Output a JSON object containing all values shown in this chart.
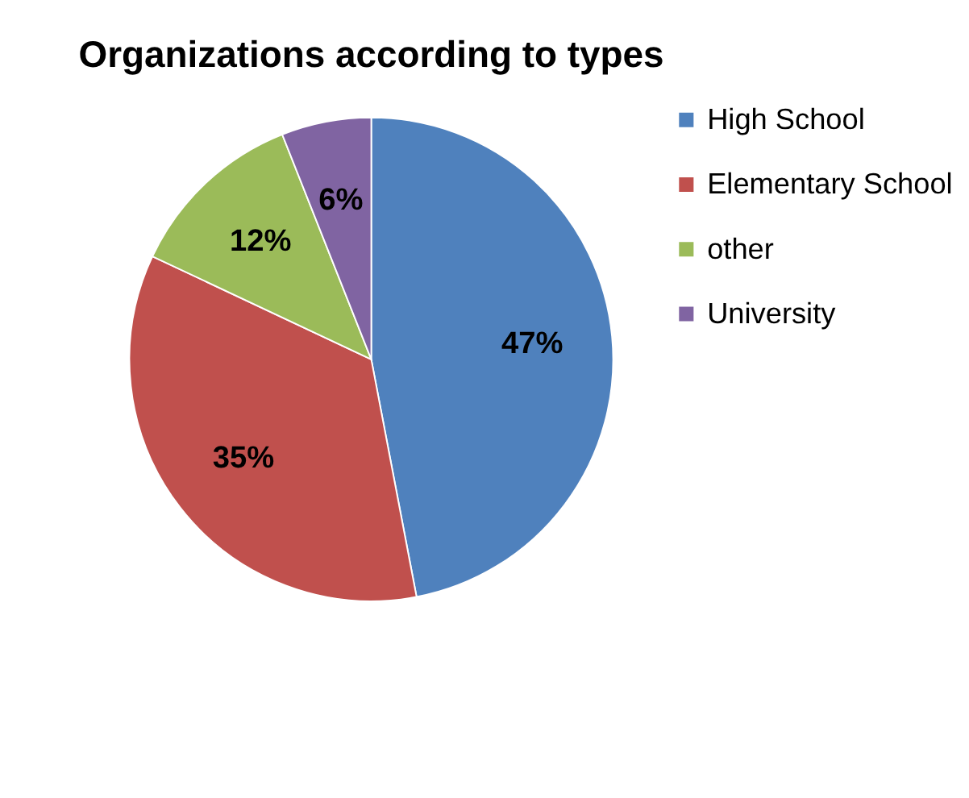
{
  "chart_data": {
    "type": "pie",
    "title": "Organizations according to types",
    "categories": [
      "High School",
      "Elementary School",
      "other",
      "University"
    ],
    "values": [
      47,
      35,
      12,
      6
    ],
    "colors": [
      "#4f81bd",
      "#c0504d",
      "#9bbb59",
      "#8064a2"
    ],
    "value_labels": [
      "47%",
      "35%",
      "12%",
      "6%"
    ],
    "legend": "right"
  }
}
